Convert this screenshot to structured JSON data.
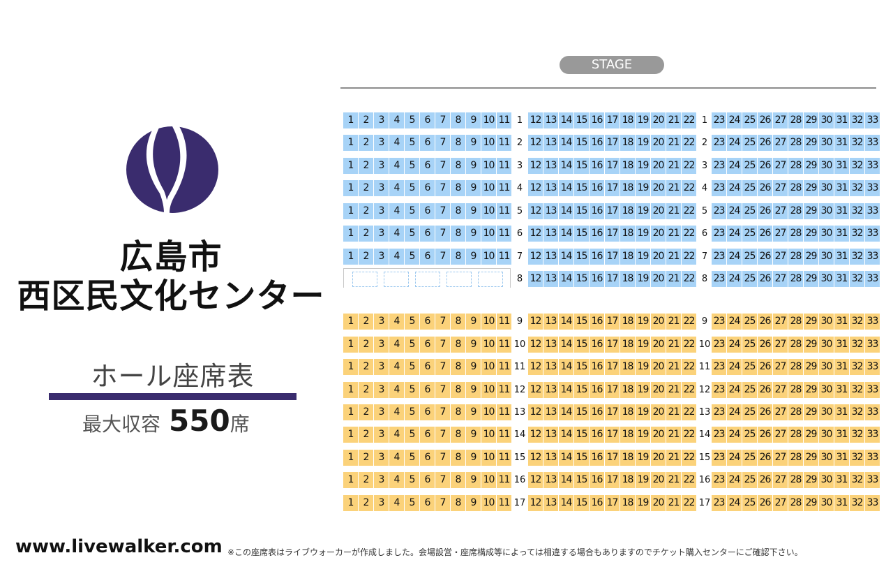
{
  "header": {
    "logo": "hiroshima-nishi-ward-hall-logo",
    "title_line1": "広島市",
    "title_line2": "西区民文化センター",
    "subtitle": "ホール座席表",
    "capacity_label": "最大収容",
    "capacity_value": "550",
    "capacity_unit": "席"
  },
  "stage": {
    "label": "STAGE"
  },
  "seating": {
    "blocks": [
      {
        "seats": [
          "1",
          "2",
          "3",
          "4",
          "5",
          "6",
          "7",
          "8",
          "9",
          "10",
          "11"
        ]
      },
      {
        "seats": [
          "12",
          "13",
          "14",
          "15",
          "16",
          "17",
          "18",
          "19",
          "20",
          "21",
          "22"
        ]
      },
      {
        "seats": [
          "23",
          "24",
          "25",
          "26",
          "27",
          "28",
          "29",
          "30",
          "31",
          "32",
          "33"
        ]
      }
    ],
    "rows": [
      {
        "row": "1",
        "zone": "blue",
        "left_block": true
      },
      {
        "row": "2",
        "zone": "blue",
        "left_block": true
      },
      {
        "row": "3",
        "zone": "blue",
        "left_block": true
      },
      {
        "row": "4",
        "zone": "blue",
        "left_block": true
      },
      {
        "row": "5",
        "zone": "blue",
        "left_block": true
      },
      {
        "row": "6",
        "zone": "blue",
        "left_block": true
      },
      {
        "row": "7",
        "zone": "blue",
        "left_block": true
      },
      {
        "row": "8",
        "zone": "blue",
        "left_block": false
      },
      {
        "row": "9",
        "zone": "orange",
        "left_block": true
      },
      {
        "row": "10",
        "zone": "orange",
        "left_block": true
      },
      {
        "row": "11",
        "zone": "orange",
        "left_block": true
      },
      {
        "row": "12",
        "zone": "orange",
        "left_block": true
      },
      {
        "row": "13",
        "zone": "orange",
        "left_block": true
      },
      {
        "row": "14",
        "zone": "orange",
        "left_block": true
      },
      {
        "row": "15",
        "zone": "orange",
        "left_block": true
      },
      {
        "row": "16",
        "zone": "orange",
        "left_block": true
      },
      {
        "row": "17",
        "zone": "orange",
        "left_block": true
      }
    ],
    "empty_slots_row8": 5
  },
  "colors": {
    "blue_zone": "#a7d3f7",
    "orange_zone": "#fbd27a",
    "brand_purple": "#3a2c6e"
  },
  "footer": {
    "site": "www.livewalker.com",
    "note": "※この座席表はライブウォーカーが作成しました。会場設営・座席構成等によっては相違する場合もありますのでチケット購入センターにご確認下さい。"
  }
}
